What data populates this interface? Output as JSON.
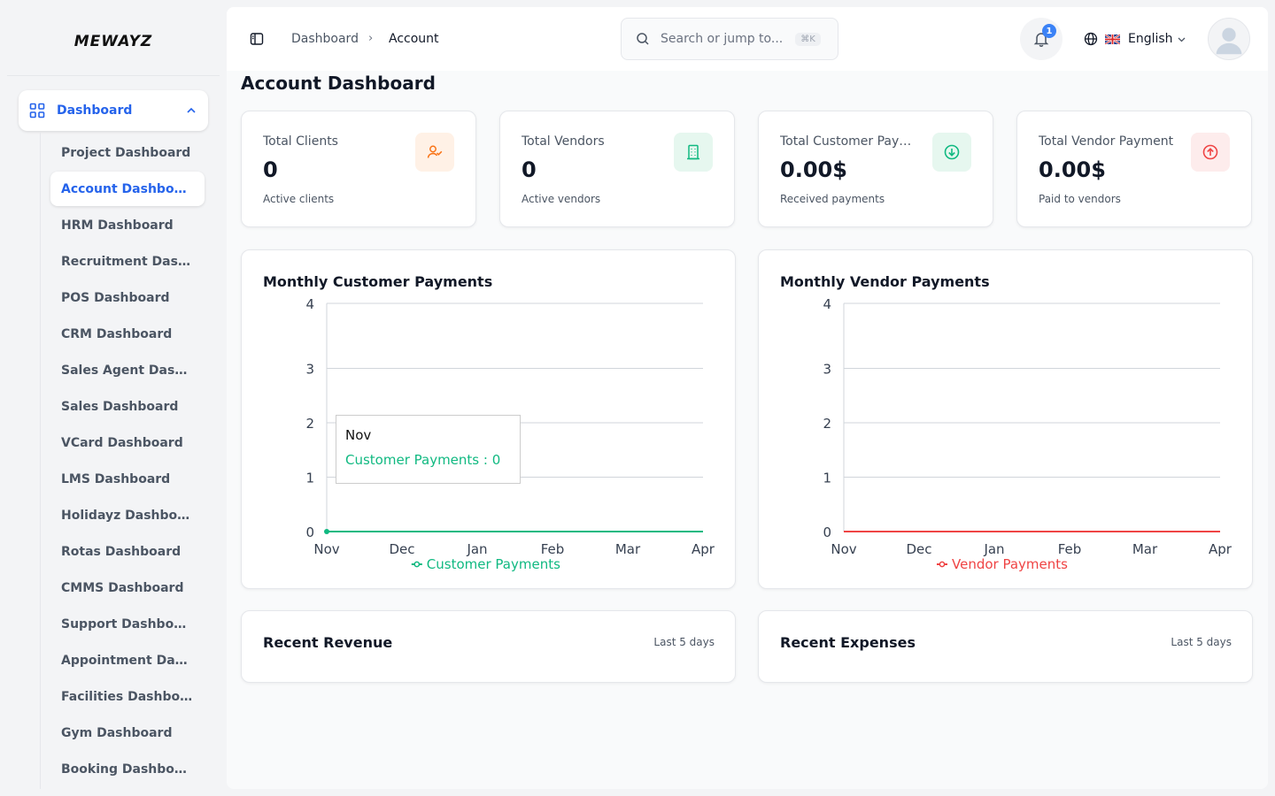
{
  "brand": {
    "logo_text": "MEWAYZ"
  },
  "sidebar": {
    "main_item": {
      "label": "Dashboard",
      "expanded": true
    },
    "items": [
      {
        "label": "Project Dashboard",
        "active": false
      },
      {
        "label": "Account Dashboard",
        "active": true
      },
      {
        "label": "HRM Dashboard",
        "active": false
      },
      {
        "label": "Recruitment Das…",
        "active": false
      },
      {
        "label": "POS Dashboard",
        "active": false
      },
      {
        "label": "CRM Dashboard",
        "active": false
      },
      {
        "label": "Sales Agent Dash…",
        "active": false
      },
      {
        "label": "Sales Dashboard",
        "active": false
      },
      {
        "label": "VCard Dashboard",
        "active": false
      },
      {
        "label": "LMS Dashboard",
        "active": false
      },
      {
        "label": "Holidayz Dashbo…",
        "active": false
      },
      {
        "label": "Rotas Dashboard",
        "active": false
      },
      {
        "label": "CMMS Dashboard",
        "active": false
      },
      {
        "label": "Support Dashboard",
        "active": false
      },
      {
        "label": "Appointment Das…",
        "active": false
      },
      {
        "label": "Facilities Dashbo…",
        "active": false
      },
      {
        "label": "Gym Dashboard",
        "active": false
      },
      {
        "label": "Booking Dashboard",
        "active": false
      }
    ]
  },
  "header": {
    "breadcrumb": [
      "Dashboard",
      "Account"
    ],
    "breadcrumb_separator": "›",
    "search_placeholder": "Search or jump to...",
    "search_shortcut": "⌘K",
    "notification_count": "1",
    "language": "English"
  },
  "page": {
    "title": "Account Dashboard"
  },
  "stats": [
    {
      "label": "Total Clients",
      "value": "0",
      "sub": "Active clients",
      "icon": "user-check-icon",
      "icon_color": "#f97316",
      "icon_bg": "#fff1e6"
    },
    {
      "label": "Total Vendors",
      "value": "0",
      "sub": "Active vendors",
      "icon": "building-icon",
      "icon_color": "#10b981",
      "icon_bg": "#e6f7ef"
    },
    {
      "label": "Total Customer Payments",
      "value": "0.00$",
      "sub": "Received payments",
      "icon": "arrow-down-circle-icon",
      "icon_color": "#10b981",
      "icon_bg": "#e6f7ef"
    },
    {
      "label": "Total Vendor Payment",
      "value": "0.00$",
      "sub": "Paid to vendors",
      "icon": "arrow-up-circle-icon",
      "icon_color": "#ef4444",
      "icon_bg": "#fdecec"
    }
  ],
  "charts": {
    "customer": {
      "title": "Monthly Customer Payments",
      "tooltip_month": "Nov",
      "tooltip_text": "Customer Payments : 0"
    },
    "vendor": {
      "title": "Monthly Vendor Payments"
    }
  },
  "chart_data": [
    {
      "type": "line",
      "title": "Monthly Customer Payments",
      "categories": [
        "Nov",
        "Dec",
        "Jan",
        "Feb",
        "Mar",
        "Apr"
      ],
      "series": [
        {
          "name": "Customer Payments",
          "values": [
            0,
            0,
            0,
            0,
            0,
            0
          ],
          "color": "#10b981"
        }
      ],
      "yticks": [
        0,
        1,
        2,
        3,
        4
      ],
      "ylim": [
        0,
        4
      ],
      "grid": true,
      "legend": "bottom"
    },
    {
      "type": "line",
      "title": "Monthly Vendor Payments",
      "categories": [
        "Nov",
        "Dec",
        "Jan",
        "Feb",
        "Mar",
        "Apr"
      ],
      "series": [
        {
          "name": "Vendor Payments",
          "values": [
            0,
            0,
            0,
            0,
            0,
            0
          ],
          "color": "#ef4444"
        }
      ],
      "yticks": [
        0,
        1,
        2,
        3,
        4
      ],
      "ylim": [
        0,
        4
      ],
      "grid": true,
      "legend": "bottom"
    }
  ],
  "recent": {
    "revenue": {
      "title": "Recent Revenue",
      "range": "Last 5 days"
    },
    "expenses": {
      "title": "Recent Expenses",
      "range": "Last 5 days"
    }
  },
  "colors": {
    "accent": "#2563eb",
    "success": "#10b981",
    "danger": "#ef4444",
    "warning": "#f97316"
  }
}
